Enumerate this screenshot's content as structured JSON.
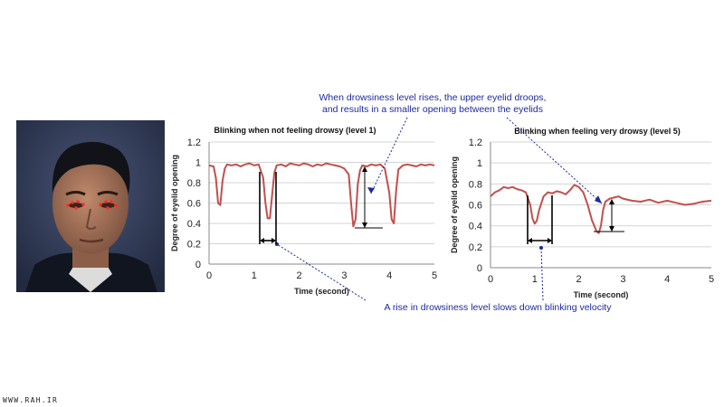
{
  "annotations": {
    "top_line1": "When drowsiness level rises, the upper eyelid droops,",
    "top_line2": "and results in a smaller opening between the eyelids",
    "bottom": "A rise in drowsiness level slows down blinking velocity",
    "color": "#1d2a9c"
  },
  "watermark": "WWW.RAH.IR",
  "chart_data": [
    {
      "type": "line",
      "title": "Blinking when not feeling drowsy (level 1)",
      "xlabel": "Time (second)",
      "ylabel": "Degree of eyelid opening",
      "xlim": [
        0,
        5
      ],
      "ylim": [
        0,
        1.2
      ],
      "xticks": [
        "0",
        "1",
        "2",
        "3",
        "4",
        "5"
      ],
      "yticks": [
        "0",
        "0.2",
        "0.4",
        "0.6",
        "0.8",
        "1",
        "1.2"
      ],
      "grid": true,
      "line_color": "#c0504d",
      "series": [
        {
          "x": [
            0,
            0.1,
            0.15,
            0.2,
            0.25,
            0.3,
            0.35,
            0.4,
            0.5,
            0.6,
            0.7,
            0.8,
            0.9,
            1.0,
            1.1,
            1.2,
            1.25,
            1.3,
            1.35,
            1.4,
            1.45,
            1.5,
            1.6,
            1.7,
            1.8,
            1.9,
            2.0,
            2.1,
            2.2,
            2.3,
            2.4,
            2.5,
            2.6,
            2.7,
            2.8,
            2.9,
            3.0,
            3.1,
            3.15,
            3.2,
            3.25,
            3.3,
            3.35,
            3.4,
            3.5,
            3.6,
            3.7,
            3.8,
            3.9,
            4.0,
            4.05,
            4.1,
            4.15,
            4.2,
            4.3,
            4.4,
            4.5,
            4.6,
            4.7,
            4.8,
            4.9,
            5.0
          ],
          "y": [
            0.97,
            0.96,
            0.85,
            0.6,
            0.58,
            0.82,
            0.94,
            0.98,
            0.97,
            0.98,
            0.96,
            0.98,
            0.99,
            0.97,
            0.98,
            0.85,
            0.6,
            0.45,
            0.45,
            0.68,
            0.9,
            0.97,
            0.98,
            0.96,
            0.99,
            0.98,
            0.97,
            0.99,
            0.98,
            0.96,
            0.98,
            0.97,
            0.99,
            0.98,
            0.97,
            0.96,
            0.94,
            0.88,
            0.6,
            0.37,
            0.44,
            0.78,
            0.92,
            0.97,
            0.96,
            0.98,
            0.97,
            0.98,
            0.94,
            0.7,
            0.44,
            0.4,
            0.72,
            0.93,
            0.97,
            0.98,
            0.97,
            0.96,
            0.98,
            0.97,
            0.98,
            0.97
          ]
        }
      ]
    },
    {
      "type": "line",
      "title": "Blinking when feeling very drowsy (level 5)",
      "xlabel": "Time (second)",
      "ylabel": "Degree of eyelid opening",
      "xlim": [
        0,
        5
      ],
      "ylim": [
        0,
        1.2
      ],
      "xticks": [
        "0",
        "1",
        "2",
        "3",
        "4",
        "5"
      ],
      "yticks": [
        "0",
        "0.2",
        "0.4",
        "0.6",
        "0.8",
        "1",
        "1.2"
      ],
      "grid": true,
      "line_color": "#c0504d",
      "series": [
        {
          "x": [
            0,
            0.1,
            0.2,
            0.3,
            0.4,
            0.5,
            0.6,
            0.7,
            0.8,
            0.9,
            0.95,
            1.0,
            1.05,
            1.1,
            1.2,
            1.3,
            1.4,
            1.5,
            1.6,
            1.7,
            1.8,
            1.9,
            2.0,
            2.1,
            2.2,
            2.3,
            2.4,
            2.45,
            2.5,
            2.55,
            2.6,
            2.7,
            2.8,
            2.9,
            3.0,
            3.2,
            3.4,
            3.6,
            3.8,
            4.0,
            4.2,
            4.4,
            4.6,
            4.8,
            5.0
          ],
          "y": [
            0.68,
            0.72,
            0.74,
            0.77,
            0.76,
            0.77,
            0.75,
            0.74,
            0.72,
            0.6,
            0.47,
            0.42,
            0.45,
            0.55,
            0.68,
            0.72,
            0.71,
            0.73,
            0.72,
            0.7,
            0.74,
            0.79,
            0.77,
            0.72,
            0.6,
            0.45,
            0.35,
            0.33,
            0.4,
            0.55,
            0.63,
            0.66,
            0.67,
            0.68,
            0.66,
            0.64,
            0.63,
            0.65,
            0.62,
            0.64,
            0.62,
            0.6,
            0.61,
            0.63,
            0.64
          ]
        }
      ]
    }
  ]
}
